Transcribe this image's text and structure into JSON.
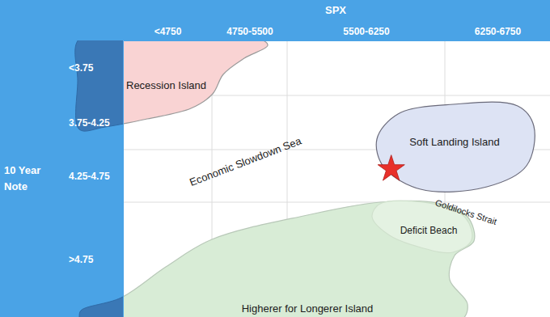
{
  "chart_data": {
    "type": "scatter",
    "x_label": "SPX",
    "y_label": "10 Year Note",
    "categories": [
      "<4750",
      "4750-5500",
      "5500-6250",
      "6250-6750"
    ],
    "y_categories": [
      "<3.75",
      "3.75-4.25",
      "4.25-4.75",
      ">4.75"
    ],
    "grid": true,
    "series": [
      {
        "x": [
          "5500-6250"
        ],
        "y": [
          "4.25-4.75"
        ],
        "marker": "star",
        "color": "#e8302a"
      }
    ],
    "annotations": [
      {
        "text": "Recession Island"
      },
      {
        "text": "Economic Slowdown Sea"
      },
      {
        "text": "Soft Landing Island"
      },
      {
        "text": "Goldilocks Strait"
      },
      {
        "text": "Deficit Beach"
      },
      {
        "text": "Higherer for Longerer Island"
      }
    ]
  }
}
